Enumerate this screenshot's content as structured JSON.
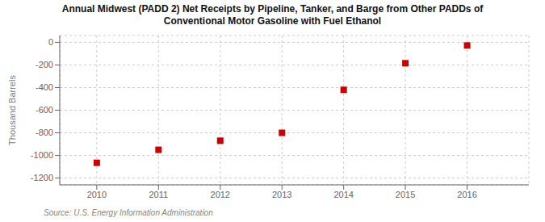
{
  "chart_data": {
    "type": "scatter",
    "title": "Annual Midwest (PADD 2) Net Receipts by Pipeline, Tanker, and Barge from Other PADDs of\nConventional Motor Gasoline with Fuel Ethanol",
    "ylabel": "Thousand Barrels",
    "annotations": [
      "Source: U.S. Energy Information Administration"
    ],
    "x": [
      2010,
      2011,
      2012,
      2013,
      2014,
      2015,
      2016
    ],
    "values": [
      -1065,
      -950,
      -870,
      -800,
      -420,
      -185,
      -28
    ],
    "xlim": [
      2009.4,
      2017.0
    ],
    "xticks": [
      2010,
      2011,
      2012,
      2013,
      2014,
      2015,
      2016
    ],
    "ylim": [
      -1260,
      60
    ],
    "yticks": [
      0,
      -200,
      -400,
      -600,
      -800,
      -1000,
      -1200
    ],
    "color": "#cc0000",
    "marker": "square",
    "grid": true
  }
}
